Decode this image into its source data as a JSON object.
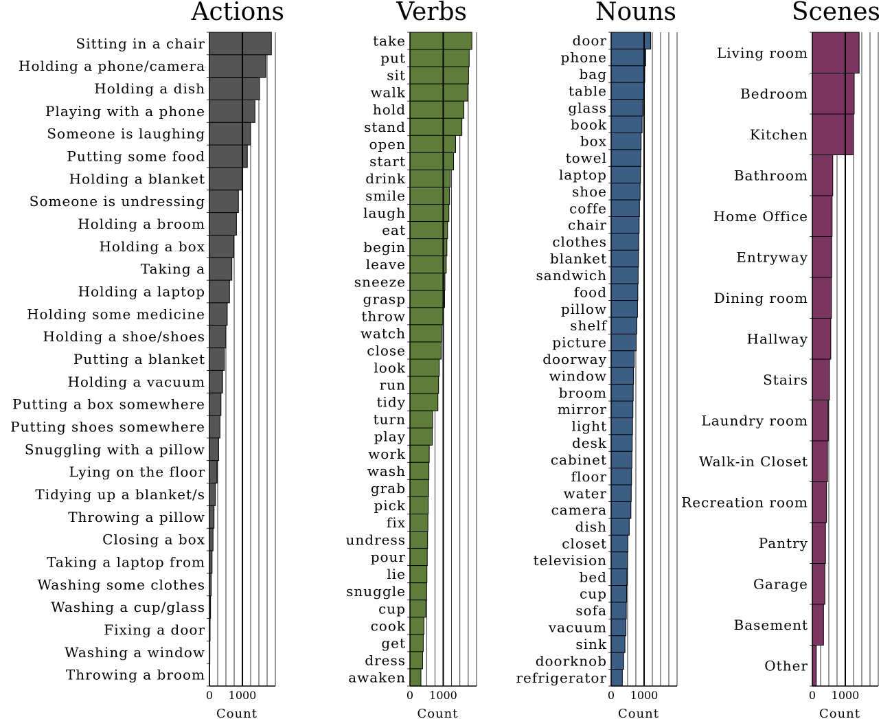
{
  "chart_data": [
    {
      "type": "bar",
      "orientation": "horizontal",
      "title": "Actions",
      "xlabel": "Count",
      "xlim": [
        0,
        2000
      ],
      "xticks": [
        0,
        1000
      ],
      "labels": [
        "Sitting in a chair",
        "Holding a phone/camera",
        "Holding a dish",
        "Playing with a phone",
        "Someone is laughing",
        "Putting some food",
        "Holding a blanket",
        "Someone is undressing",
        "Holding a broom",
        "Holding a box",
        "Taking a",
        "Holding a laptop",
        "Holding some medicine",
        "Holding a shoe/shoes",
        "Putting a blanket",
        "Holding a vacuum",
        "Putting a box somewhere",
        "Putting shoes somewhere",
        "Snuggling with a pillow",
        "Lying on the floor",
        "Tidying up a blanket/s",
        "Throwing a pillow",
        "Closing a box",
        "Taking a laptop from",
        "Washing some clothes",
        "Washing a cup/glass",
        "Fixing a door",
        "Washing a window",
        "Throwing a broom"
      ],
      "values": [
        1880,
        1710,
        1520,
        1380,
        1250,
        1150,
        1000,
        880,
        820,
        740,
        680,
        610,
        540,
        500,
        450,
        400,
        350,
        320,
        280,
        230,
        180,
        140,
        110,
        80,
        55,
        35,
        20,
        12,
        5
      ],
      "color": "#555555"
    },
    {
      "type": "bar",
      "orientation": "horizontal",
      "title": "Verbs",
      "xlabel": "Count",
      "xlim": [
        0,
        2000
      ],
      "xticks": [
        0,
        1000
      ],
      "labels": [
        "take",
        "put",
        "sit",
        "walk",
        "hold",
        "stand",
        "open",
        "start",
        "drink",
        "smile",
        "laugh",
        "eat",
        "begin",
        "leave",
        "sneeze",
        "grasp",
        "throw",
        "watch",
        "close",
        "look",
        "run",
        "tidy",
        "turn",
        "play",
        "work",
        "wash",
        "grab",
        "pick",
        "fix",
        "undress",
        "pour",
        "lie",
        "snuggle",
        "cup",
        "cook",
        "get",
        "dress",
        "awaken"
      ],
      "values": [
        1860,
        1780,
        1760,
        1740,
        1620,
        1560,
        1370,
        1310,
        1210,
        1190,
        1170,
        1130,
        1110,
        1090,
        1050,
        1040,
        1000,
        950,
        940,
        880,
        860,
        840,
        680,
        670,
        580,
        570,
        560,
        550,
        540,
        530,
        520,
        510,
        500,
        480,
        420,
        400,
        380,
        330
      ],
      "color": "#5f7d3a"
    },
    {
      "type": "bar",
      "orientation": "horizontal",
      "title": "Nouns",
      "xlabel": "Count",
      "xlim": [
        0,
        2000
      ],
      "xticks": [
        0,
        1000
      ],
      "labels": [
        "door",
        "phone",
        "bag",
        "table",
        "glass",
        "book",
        "box",
        "towel",
        "laptop",
        "shoe",
        "coffe",
        "chair",
        "clothes",
        "blanket",
        "sandwich",
        "food",
        "pillow",
        "shelf",
        "picture",
        "doorway",
        "window",
        "broom",
        "mirror",
        "light",
        "desk",
        "cabinet",
        "floor",
        "water",
        "camera",
        "dish",
        "closet",
        "television",
        "bed",
        "cup",
        "sofa",
        "vacuum",
        "sink",
        "doorknob",
        "refrigerator"
      ],
      "values": [
        1200,
        1050,
        1020,
        1000,
        960,
        940,
        910,
        900,
        890,
        880,
        860,
        850,
        840,
        830,
        820,
        810,
        800,
        780,
        760,
        700,
        680,
        670,
        660,
        650,
        640,
        630,
        620,
        610,
        600,
        550,
        510,
        500,
        480,
        470,
        460,
        450,
        420,
        380,
        340
      ],
      "color": "#3c5e85"
    },
    {
      "type": "bar",
      "orientation": "horizontal",
      "title": "Scenes",
      "xlabel": "Count",
      "xlim": [
        0,
        2000
      ],
      "xticks": [
        0,
        1000
      ],
      "labels": [
        "Living room",
        "Bedroom",
        "Kitchen",
        "Bathroom",
        "Home Office",
        "Entryway",
        "Dining room",
        "Hallway",
        "Stairs",
        "Laundry room",
        "Walk-in Closet",
        "Recreation room",
        "Pantry",
        "Garage",
        "Basement",
        "Other"
      ],
      "values": [
        1420,
        1270,
        1250,
        620,
        600,
        590,
        580,
        560,
        520,
        480,
        460,
        430,
        400,
        380,
        340,
        120
      ],
      "color": "#7a3560"
    }
  ]
}
